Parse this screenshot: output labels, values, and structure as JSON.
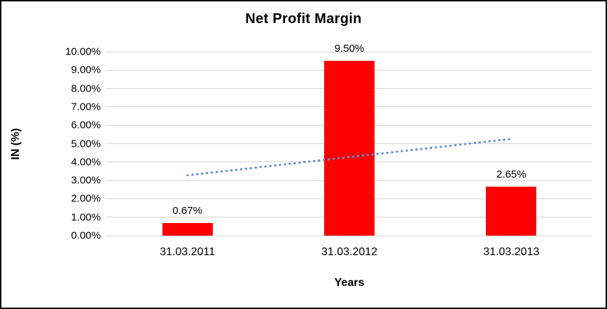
{
  "chart_data": {
    "type": "bar",
    "title": "Net Profit Margin",
    "xlabel": "Years",
    "ylabel": "IN (%)",
    "categories": [
      "31.03.2011",
      "31.03.2012",
      "31.03.2013"
    ],
    "values": [
      0.67,
      9.5,
      2.65
    ],
    "data_labels": [
      "0.67%",
      "9.50%",
      "2.65%"
    ],
    "ylim": [
      0,
      10
    ],
    "y_ticks": [
      "0.00%",
      "1.00%",
      "2.00%",
      "3.00%",
      "4.00%",
      "5.00%",
      "6.00%",
      "7.00%",
      "8.00%",
      "9.00%",
      "10.00%"
    ],
    "grid": true,
    "legend": false,
    "bar_color": "#ff0000",
    "trendline": {
      "style": "dotted",
      "color": "#5b8ed5",
      "start_value": 3.28,
      "end_value": 5.26
    }
  }
}
